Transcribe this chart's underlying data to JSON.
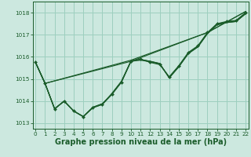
{
  "background_color": "#cce8df",
  "grid_color": "#9dcfbf",
  "line_color": "#1a5c2a",
  "xlabel": "Graphe pression niveau de la mer (hPa)",
  "xlabel_fontsize": 7.0,
  "ylim": [
    1012.75,
    1018.5
  ],
  "xlim": [
    -0.3,
    22.3
  ],
  "yticks": [
    1013,
    1014,
    1015,
    1016,
    1017,
    1018
  ],
  "xticks": [
    0,
    1,
    2,
    3,
    4,
    5,
    6,
    7,
    8,
    9,
    10,
    11,
    12,
    13,
    14,
    15,
    16,
    17,
    18,
    19,
    20,
    21,
    22
  ],
  "series_with_markers": [
    [
      1015.75,
      1014.8,
      1013.65,
      1014.0,
      1013.55,
      1013.3,
      1013.7,
      1013.85,
      1014.3,
      1014.85,
      1015.8,
      1015.9,
      1015.75,
      1015.65,
      1015.1,
      1015.6,
      1016.2,
      1016.5,
      1017.1,
      1017.5,
      1017.6,
      1017.65,
      1018.0
    ]
  ],
  "series_no_markers": [
    [
      1015.75,
      1014.8,
      1013.65,
      1014.0,
      1013.55,
      1013.3,
      1013.7,
      1013.85,
      1014.35,
      1014.9,
      1015.8,
      1015.85,
      1015.78,
      1015.68,
      1015.08,
      1015.58,
      1016.18,
      1016.48,
      1017.08,
      1017.48,
      1017.58,
      1017.62,
      1017.98
    ],
    [
      1015.75,
      1014.8,
      1013.65,
      1014.0,
      1013.55,
      1013.3,
      1013.72,
      1013.88,
      1014.32,
      1014.88,
      1015.82,
      1015.88,
      1015.8,
      1015.7,
      1015.05,
      1015.55,
      1016.15,
      1016.45,
      1017.05,
      1017.45,
      1017.55,
      1017.6,
      1017.95
    ],
    [
      1015.75,
      1014.8,
      1013.65,
      1014.0,
      1013.55,
      1013.3,
      1013.72,
      1013.88,
      1014.32,
      1014.88,
      1015.82,
      1015.88,
      1015.8,
      1015.7,
      1015.05,
      1015.55,
      1016.15,
      1016.45,
      1017.05,
      1017.45,
      1017.55,
      1017.6,
      1017.95
    ]
  ],
  "series_straight": [
    [
      [
        0,
        1015.75
      ],
      [
        1,
        1014.8
      ],
      [
        10,
        1015.8
      ],
      [
        18,
        1017.1
      ],
      [
        22,
        1018.05
      ]
    ],
    [
      [
        1,
        1014.8
      ],
      [
        10,
        1015.85
      ],
      [
        18,
        1017.1
      ],
      [
        22,
        1018.05
      ]
    ]
  ]
}
